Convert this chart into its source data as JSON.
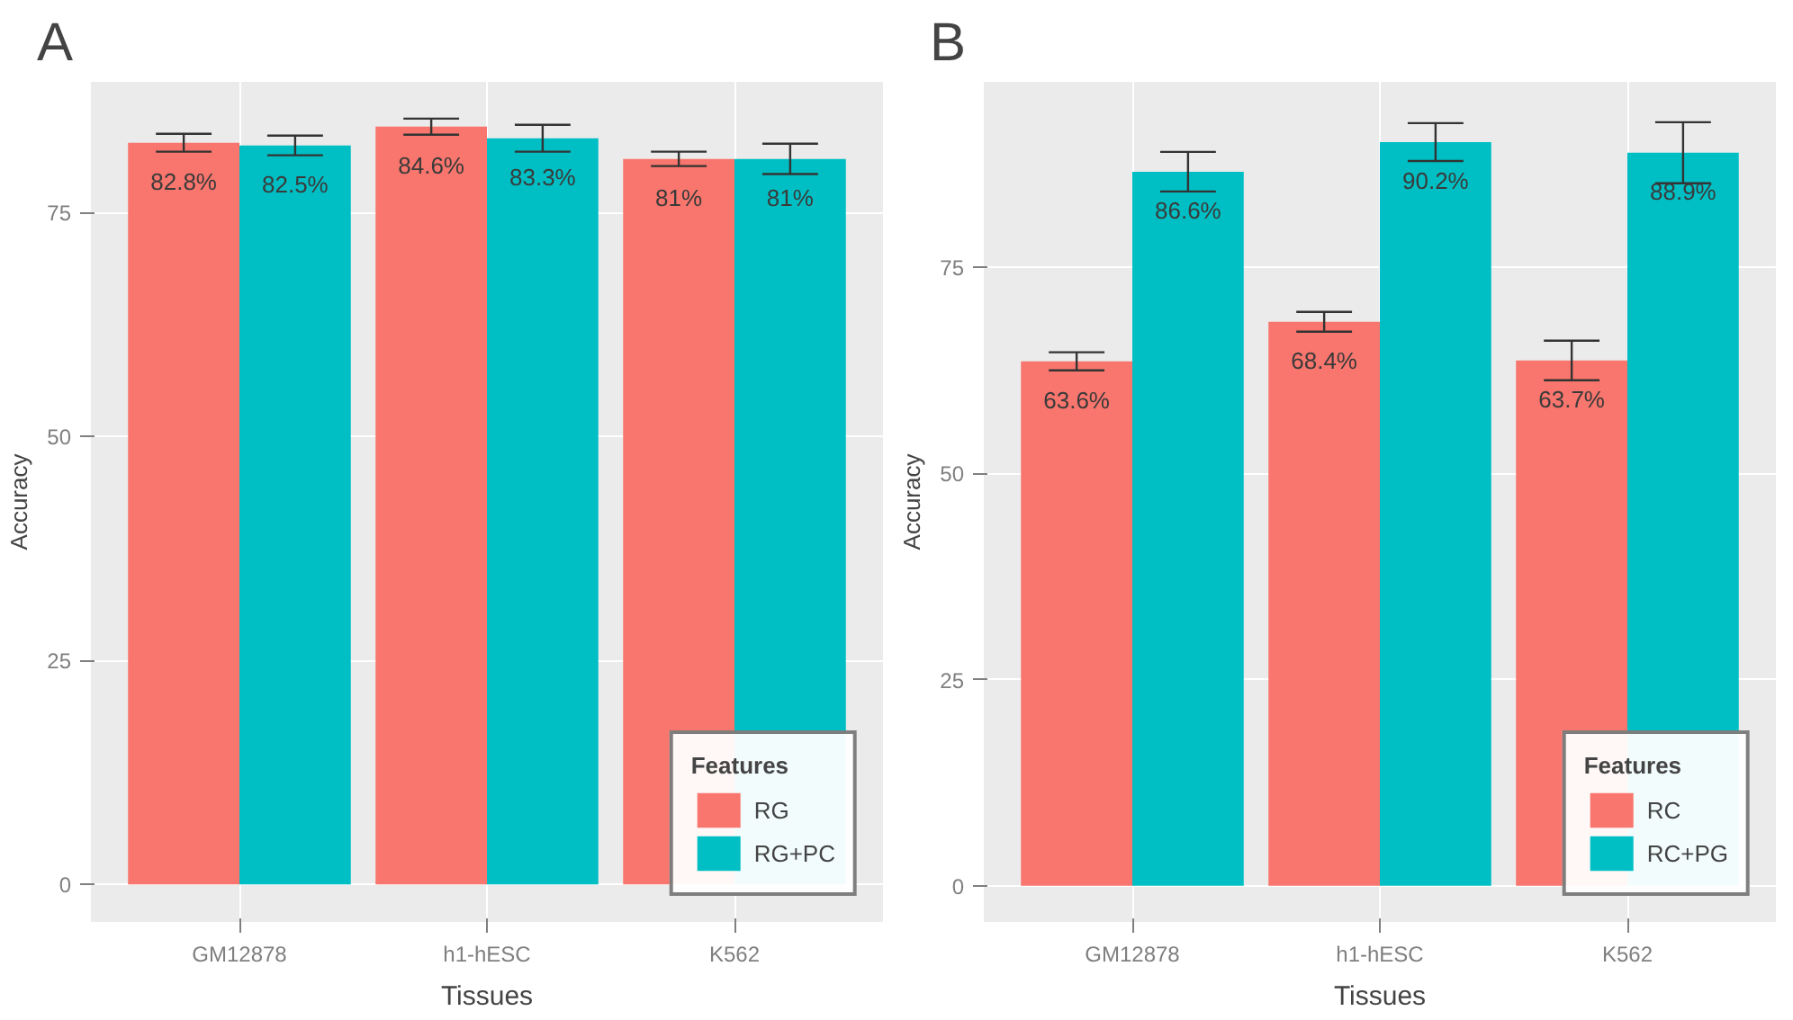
{
  "chart_data": [
    {
      "type": "bar",
      "title": "A",
      "xlabel": "Tissues",
      "ylabel": "Accuracy",
      "legend_title": "Features",
      "categories": [
        "GM12878",
        "h1-hESC",
        "K562"
      ],
      "series": [
        {
          "name": "RG",
          "color": "#f8766d",
          "values": [
            82.8,
            84.6,
            81
          ],
          "errors": [
            1.0,
            0.9,
            0.8
          ],
          "value_labels": [
            "82.8%",
            "84.6%",
            "81%"
          ]
        },
        {
          "name": "RG+PC",
          "color": "#00bfc4",
          "values": [
            82.5,
            83.3,
            81
          ],
          "errors": [
            1.1,
            1.5,
            1.7
          ],
          "value_labels": [
            "82.5%",
            "83.3%",
            "81%"
          ]
        }
      ],
      "ylim": [
        -4.2,
        89.6
      ],
      "yticks": [
        0,
        25,
        50,
        75
      ],
      "grid": true,
      "legend": "bottom right"
    },
    {
      "type": "bar",
      "title": "B",
      "xlabel": "Tissues",
      "ylabel": "Accuracy",
      "legend_title": "Features",
      "categories": [
        "GM12878",
        "h1-hESC",
        "K562"
      ],
      "series": [
        {
          "name": "RC",
          "color": "#f8766d",
          "values": [
            63.6,
            68.4,
            63.7
          ],
          "errors": [
            1.1,
            1.2,
            2.4
          ],
          "value_labels": [
            "63.6%",
            "68.4%",
            "63.7%"
          ]
        },
        {
          "name": "RC+PG",
          "color": "#00bfc4",
          "values": [
            86.6,
            90.2,
            88.9
          ],
          "errors": [
            2.4,
            2.3,
            3.7
          ],
          "value_labels": [
            "86.6%",
            "90.2%",
            "88.9%"
          ]
        }
      ],
      "ylim": [
        -4.4,
        97.5
      ],
      "yticks": [
        0,
        25,
        50,
        75
      ],
      "grid": true,
      "legend": "bottom right"
    }
  ]
}
